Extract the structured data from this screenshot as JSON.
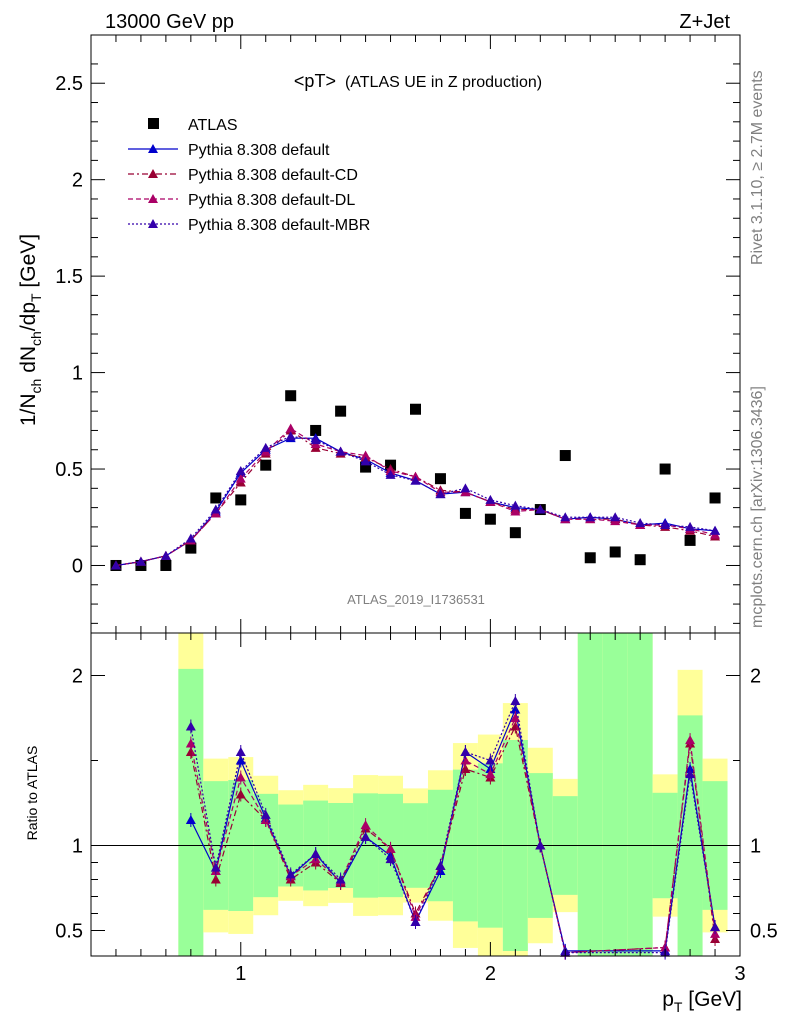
{
  "header": {
    "left": "13000 GeV pp",
    "right": "Z+Jet"
  },
  "plot_title": "<pT>",
  "plot_subtitle": "(ATLAS UE in Z production)",
  "analysis_id": "ATLAS_2019_I1736531",
  "side_text": {
    "rivet": "Rivet 3.1.10, ≥ 2.7M events",
    "mcplots": "mcplots.cern.ch [arXiv:1306.3436]"
  },
  "ratio_label": "Ratio to ATLAS",
  "colors": {
    "data": "#000000",
    "default": "#0000cc",
    "cd": "#990033",
    "dl": "#aa0066",
    "mbr": "#3300aa",
    "band_inner": "#99ff99",
    "band_outer": "#ffff99"
  },
  "chart_data": [
    {
      "type": "scatter",
      "panel": "main",
      "xlabel": "p_T [GeV]",
      "ylabel": "1/N_ch dN_ch/dp_T [GeV]",
      "xlim": [
        0.4,
        3.0
      ],
      "ylim": [
        -0.35,
        2.75
      ],
      "y_ticks": [
        "0",
        "0.5",
        "1",
        "1.5",
        "2",
        "2.5"
      ],
      "x_ticks": [
        "1",
        "2",
        "3"
      ],
      "x": [
        0.5,
        0.6,
        0.7,
        0.8,
        0.9,
        1.0,
        1.1,
        1.2,
        1.3,
        1.4,
        1.5,
        1.6,
        1.7,
        1.8,
        1.9,
        2.0,
        2.1,
        2.2,
        2.3,
        2.4,
        2.5,
        2.6,
        2.7,
        2.8,
        2.9
      ],
      "series": [
        {
          "name": "ATLAS",
          "key": "data",
          "values": [
            0.0,
            0.0,
            0.0,
            0.09,
            0.35,
            0.34,
            0.52,
            0.88,
            0.7,
            0.8,
            0.51,
            0.52,
            0.81,
            0.45,
            0.27,
            0.24,
            0.17,
            0.29,
            0.57,
            0.04,
            0.07,
            0.03,
            0.5,
            0.13,
            0.35
          ]
        },
        {
          "name": "Pythia 8.308 default",
          "key": "default",
          "values": [
            0.0,
            0.02,
            0.05,
            0.13,
            0.28,
            0.48,
            0.6,
            0.66,
            0.66,
            0.59,
            0.55,
            0.48,
            0.44,
            0.37,
            0.38,
            0.33,
            0.3,
            0.29,
            0.24,
            0.25,
            0.24,
            0.21,
            0.22,
            0.19,
            0.18
          ]
        },
        {
          "name": "Pythia 8.308 default-CD",
          "key": "cd",
          "values": [
            0.0,
            0.02,
            0.05,
            0.13,
            0.27,
            0.43,
            0.58,
            0.7,
            0.61,
            0.58,
            0.56,
            0.5,
            0.46,
            0.39,
            0.38,
            0.33,
            0.29,
            0.29,
            0.24,
            0.24,
            0.24,
            0.21,
            0.2,
            0.18,
            0.15
          ]
        },
        {
          "name": "Pythia 8.308 default-DL",
          "key": "dl",
          "values": [
            0.0,
            0.02,
            0.05,
            0.13,
            0.27,
            0.45,
            0.59,
            0.71,
            0.63,
            0.59,
            0.57,
            0.49,
            0.46,
            0.38,
            0.38,
            0.33,
            0.28,
            0.29,
            0.24,
            0.24,
            0.23,
            0.21,
            0.21,
            0.19,
            0.16
          ]
        },
        {
          "name": "Pythia 8.308 default-MBR",
          "key": "mbr",
          "values": [
            0.0,
            0.02,
            0.05,
            0.14,
            0.29,
            0.49,
            0.61,
            0.67,
            0.65,
            0.59,
            0.54,
            0.47,
            0.44,
            0.37,
            0.4,
            0.34,
            0.31,
            0.29,
            0.25,
            0.25,
            0.25,
            0.22,
            0.21,
            0.2,
            0.18
          ]
        }
      ]
    },
    {
      "type": "line",
      "panel": "ratio",
      "xlabel": "p_T [GeV]",
      "ylabel": "Ratio to ATLAS",
      "xlim": [
        0.4,
        3.0
      ],
      "ylim": [
        0.35,
        2.25
      ],
      "y_ticks": [
        "0.5",
        "1",
        "2"
      ],
      "reference": 1.0,
      "x": [
        0.8,
        0.9,
        1.0,
        1.1,
        1.2,
        1.3,
        1.4,
        1.5,
        1.6,
        1.7,
        1.8,
        1.9,
        2.0,
        2.1,
        2.2,
        2.3,
        2.7,
        2.8,
        2.9
      ],
      "series": [
        {
          "name": "Pythia 8.308 default",
          "key": "default",
          "values": [
            1.15,
            0.85,
            1.5,
            1.16,
            0.82,
            0.95,
            0.78,
            1.05,
            0.94,
            0.55,
            0.85,
            1.55,
            1.45,
            1.8,
            1.0,
            0.38,
            0.38,
            1.45,
            0.52
          ]
        },
        {
          "name": "Pythia 8.308 default-CD",
          "key": "cd",
          "values": [
            1.55,
            0.8,
            1.3,
            1.15,
            0.8,
            0.9,
            0.78,
            1.1,
            0.98,
            0.6,
            0.88,
            1.45,
            1.4,
            1.7,
            1.0,
            0.37,
            0.4,
            1.6,
            0.45
          ]
        },
        {
          "name": "Pythia 8.308 default-DL",
          "key": "dl",
          "values": [
            1.6,
            0.85,
            1.4,
            1.15,
            0.82,
            0.92,
            0.79,
            1.12,
            0.98,
            0.58,
            0.88,
            1.5,
            1.42,
            1.75,
            1.0,
            0.37,
            0.4,
            1.62,
            0.48
          ]
        },
        {
          "name": "Pythia 8.308 default-MBR",
          "key": "mbr",
          "values": [
            1.7,
            0.87,
            1.55,
            1.18,
            0.83,
            0.95,
            0.8,
            1.05,
            0.92,
            0.55,
            0.88,
            1.55,
            1.5,
            1.85,
            1.0,
            0.37,
            0.37,
            1.42,
            0.52
          ]
        }
      ]
    }
  ]
}
